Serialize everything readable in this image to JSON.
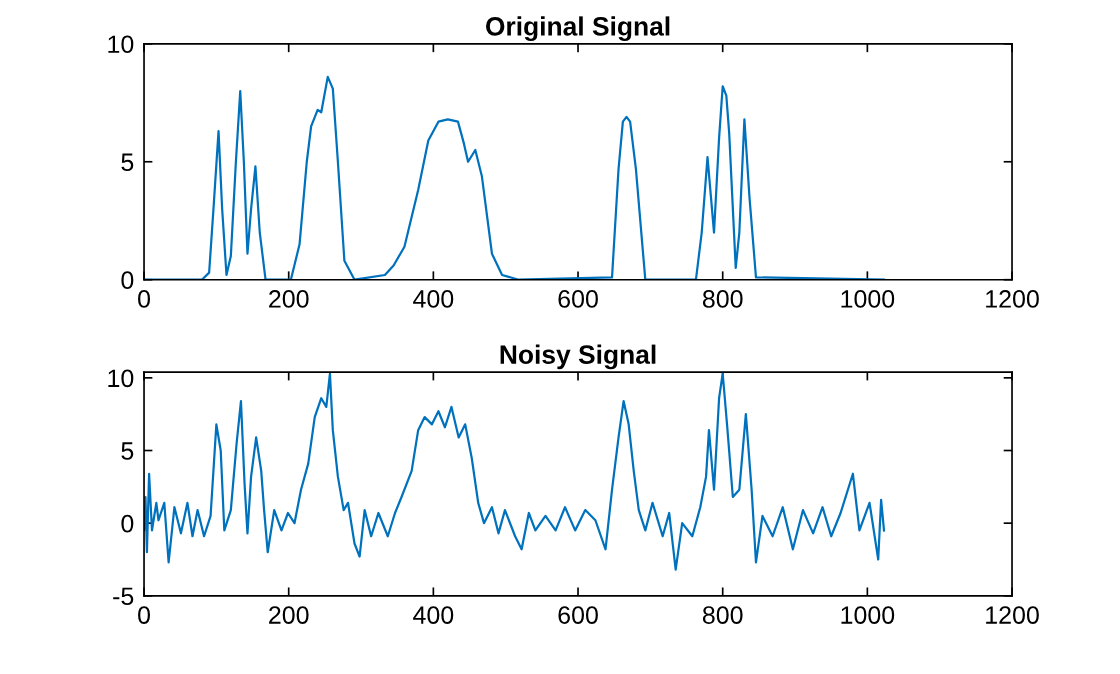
{
  "chart_data": [
    {
      "type": "line",
      "title": "Original Signal",
      "xlim": [
        0,
        1200
      ],
      "ylim": [
        0,
        10
      ],
      "xticks": [
        0,
        200,
        400,
        600,
        800,
        1000,
        1200
      ],
      "yticks": [
        0,
        5,
        10
      ],
      "series": [
        {
          "color": "#0072bd",
          "x": [
            0,
            80,
            90,
            96,
            103,
            108,
            114,
            120,
            127,
            133,
            138,
            143,
            148,
            154,
            160,
            168,
            203,
            215,
            225,
            231,
            240,
            245,
            254,
            261,
            268,
            277,
            291,
            333,
            345,
            360,
            379,
            393,
            407,
            420,
            434,
            442,
            448,
            458,
            467,
            481,
            495,
            518,
            647,
            656,
            662,
            667,
            672,
            680,
            693,
            763,
            771,
            779,
            788,
            795,
            800,
            805,
            809,
            818,
            823,
            830,
            837,
            846,
            1023
          ],
          "values": [
            0,
            0,
            0.3,
            3,
            6.3,
            3,
            0.2,
            1,
            5,
            8,
            5,
            1.1,
            3,
            4.8,
            2,
            0,
            0,
            1.5,
            5,
            6.5,
            7.2,
            7.1,
            8.6,
            8.1,
            5,
            0.8,
            0,
            0.2,
            0.6,
            1.4,
            3.8,
            5.9,
            6.7,
            6.8,
            6.7,
            5.8,
            5,
            5.5,
            4.4,
            1.1,
            0.2,
            0,
            0.1,
            4.7,
            6.7,
            6.9,
            6.7,
            4.7,
            0,
            0,
            2,
            5.2,
            2,
            6,
            8.2,
            7.8,
            6.2,
            0.5,
            2,
            6.8,
            3.5,
            0.1,
            0
          ]
        }
      ]
    },
    {
      "type": "line",
      "title": "Noisy Signal",
      "xlim": [
        0,
        1200
      ],
      "ylim": [
        -5,
        10.4
      ],
      "xticks": [
        0,
        200,
        400,
        600,
        800,
        1000,
        1200
      ],
      "yticks": [
        -5,
        0,
        5,
        10
      ],
      "series": [
        {
          "color": "#0072bd",
          "x": [
            0,
            2,
            4,
            7,
            11,
            17,
            20,
            28,
            34,
            42,
            51,
            60,
            67,
            74,
            83,
            92,
            100,
            106,
            111,
            120,
            128,
            134,
            139,
            143,
            148,
            155,
            162,
            166,
            171,
            180,
            190,
            199,
            208,
            217,
            227,
            236,
            245,
            252,
            257,
            261,
            268,
            276,
            282,
            291,
            298,
            305,
            314,
            324,
            337,
            347,
            356,
            370,
            379,
            388,
            398,
            407,
            416,
            425,
            435,
            444,
            453,
            462,
            470,
            481,
            490,
            499,
            513,
            522,
            532,
            541,
            555,
            569,
            582,
            596,
            610,
            624,
            638,
            647,
            656,
            663,
            670,
            677,
            684,
            693,
            703,
            717,
            726,
            735,
            744,
            758,
            769,
            777,
            781,
            788,
            795,
            800,
            806,
            814,
            823,
            832,
            840,
            846,
            855,
            869,
            883,
            897,
            911,
            925,
            938,
            950,
            963,
            980,
            989,
            1003,
            1015,
            1019,
            1023
          ],
          "values": [
            -0.5,
            1.8,
            -2,
            3.4,
            -0.5,
            1.4,
            0.2,
            1.4,
            -2.7,
            1.1,
            -0.7,
            1.4,
            -0.9,
            0.9,
            -0.9,
            0.5,
            6.8,
            5,
            -0.5,
            0.9,
            5.5,
            8.4,
            2.7,
            -0.7,
            3.2,
            5.9,
            3.6,
            0.9,
            -2,
            0.9,
            -0.5,
            0.7,
            0,
            2.3,
            4.1,
            7.3,
            8.6,
            8,
            10.3,
            6.4,
            3.2,
            0.9,
            1.4,
            -1.4,
            -2.3,
            0.9,
            -0.9,
            0.7,
            -0.9,
            0.7,
            1.8,
            3.6,
            6.4,
            7.3,
            6.8,
            7.7,
            6.6,
            8,
            5.9,
            6.8,
            4.5,
            1.4,
            0,
            1.1,
            -0.7,
            0.9,
            -0.9,
            -1.8,
            0.7,
            -0.5,
            0.5,
            -0.5,
            1.1,
            -0.5,
            0.9,
            0.2,
            -1.8,
            2.3,
            5.9,
            8.4,
            6.8,
            3.6,
            0.9,
            -0.5,
            1.4,
            -0.9,
            0.7,
            -3.2,
            0,
            -0.9,
            1.1,
            3.2,
            6.4,
            2.3,
            8.6,
            10.3,
            6.8,
            1.8,
            2.3,
            7.5,
            2.3,
            -2.7,
            0.5,
            -0.9,
            1.1,
            -1.8,
            0.9,
            -0.7,
            1.1,
            -0.9,
            0.7,
            3.4,
            -0.5,
            1.4,
            -2.5,
            1.6,
            -0.5
          ]
        }
      ]
    }
  ]
}
